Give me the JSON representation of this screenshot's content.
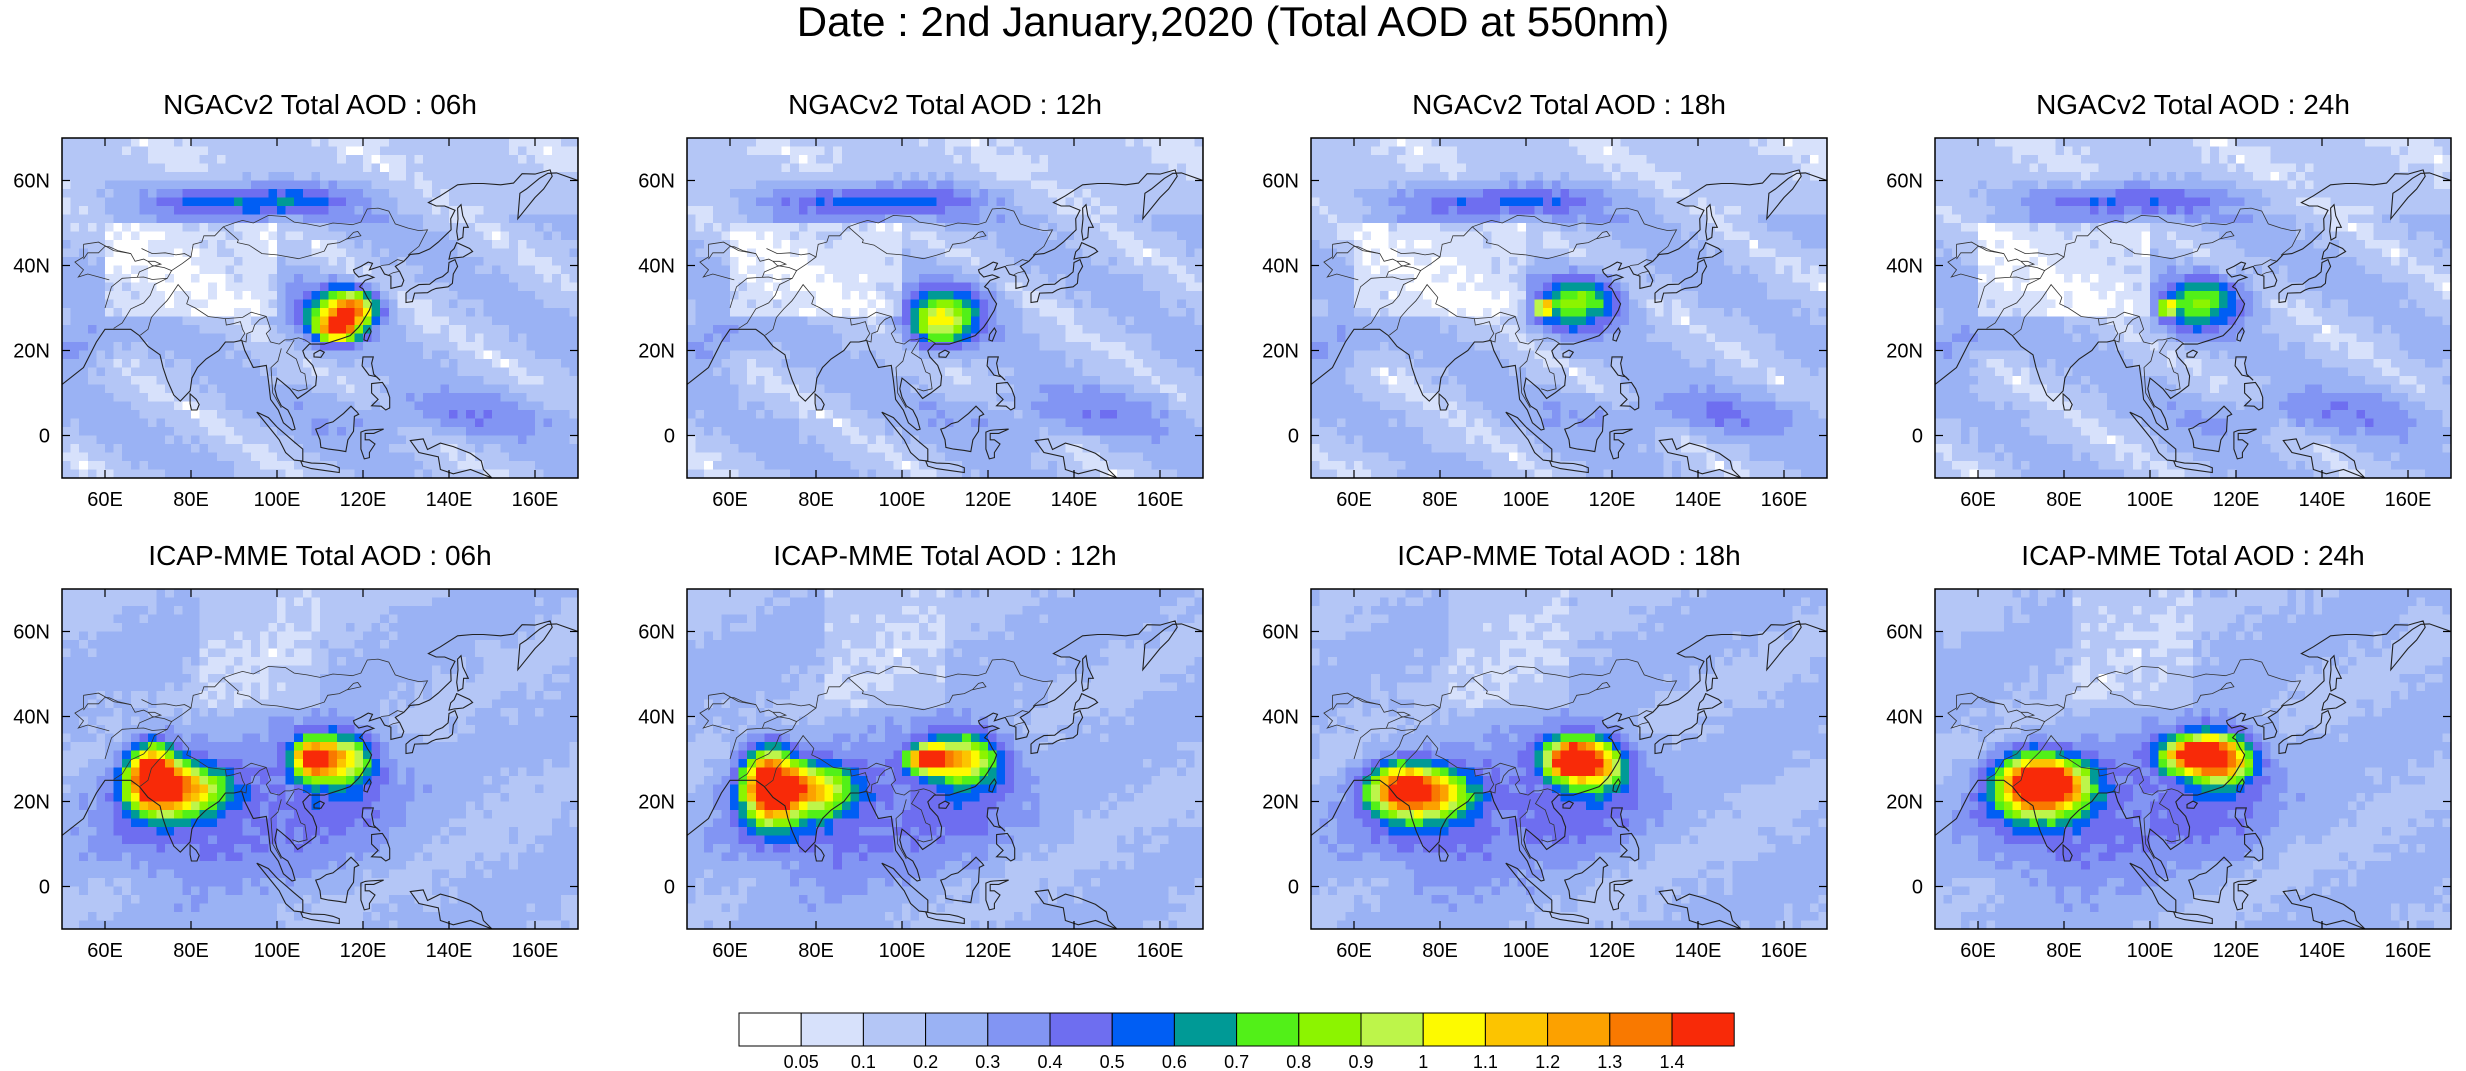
{
  "figure": {
    "title": "Date : 2nd January,2020 (Total AOD at 550nm)"
  },
  "map_extent": {
    "lon_min": 50,
    "lon_max": 170,
    "lat_min": -10,
    "lat_max": 70
  },
  "axes": {
    "lon_ticks": [
      60,
      80,
      100,
      120,
      140,
      160
    ],
    "lon_tick_labels": [
      "60E",
      "80E",
      "100E",
      "120E",
      "140E",
      "160E"
    ],
    "lat_ticks": [
      0,
      20,
      40,
      60
    ],
    "lat_tick_labels": [
      "0",
      "20N",
      "40N",
      "60N"
    ]
  },
  "colorbar": {
    "bounds": [
      0.05,
      0.1,
      0.2,
      0.3,
      0.4,
      0.5,
      0.6,
      0.7,
      0.8,
      0.9,
      1,
      1.1,
      1.2,
      1.3,
      1.4
    ],
    "labels": [
      "0.05",
      "0.1",
      "0.2",
      "0.3",
      "0.4",
      "0.5",
      "0.6",
      "0.7",
      "0.8",
      "0.9",
      "1",
      "1.1",
      "1.2",
      "1.3",
      "1.4"
    ],
    "colors": [
      "#ffffff",
      "#d7e1fb",
      "#b4c6f6",
      "#9ab2f4",
      "#8295f3",
      "#6e6ef0",
      "#005ef4",
      "#009a96",
      "#52f018",
      "#8cf400",
      "#bdf54a",
      "#fdfa00",
      "#fcc400",
      "#fca100",
      "#f97900",
      "#f82a08"
    ]
  },
  "panels": [
    {
      "title": "NGACv2 Total AOD : 06h",
      "model": "NGACv2",
      "hour": "06h"
    },
    {
      "title": "NGACv2 Total AOD : 12h",
      "model": "NGACv2",
      "hour": "12h"
    },
    {
      "title": "NGACv2 Total AOD : 18h",
      "model": "NGACv2",
      "hour": "18h"
    },
    {
      "title": "NGACv2 Total AOD : 24h",
      "model": "NGACv2",
      "hour": "24h"
    },
    {
      "title": "ICAP-MME Total AOD : 06h",
      "model": "ICAP-MME",
      "hour": "06h"
    },
    {
      "title": "ICAP-MME Total AOD : 12h",
      "model": "ICAP-MME",
      "hour": "12h"
    },
    {
      "title": "ICAP-MME Total AOD : 18h",
      "model": "ICAP-MME",
      "hour": "18h"
    },
    {
      "title": "ICAP-MME Total AOD : 24h",
      "model": "ICAP-MME",
      "hour": "24h"
    }
  ]
}
